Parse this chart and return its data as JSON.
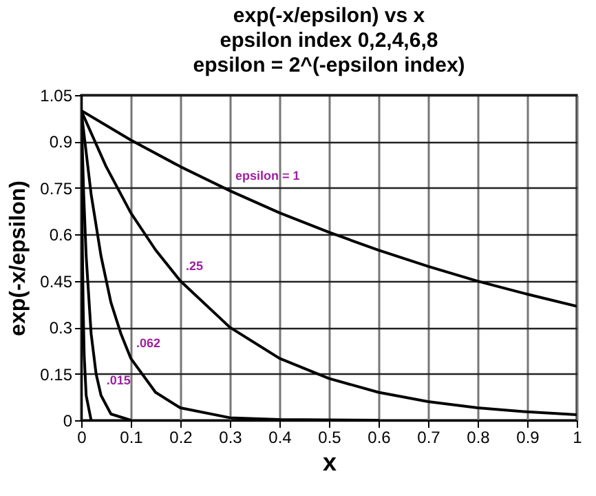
{
  "chart_data": {
    "type": "line",
    "title": "exp(-x/epsilon) vs x\nepsilon index  0,2,4,6,8\nepsilon = 2^(-epsilon index)",
    "xlabel": "x",
    "ylabel": "exp(-x/epsilon)",
    "series": [
      {
        "color": "#000000",
        "x": [
          0,
          0.1,
          0.2,
          0.3,
          0.4,
          0.5,
          0.6,
          0.7,
          0.8,
          0.9,
          1
        ],
        "values": [
          1,
          0.905,
          0.819,
          0.741,
          0.67,
          0.607,
          0.549,
          0.497,
          0.449,
          0.407,
          0.368
        ]
      },
      {
        "color": "#000000",
        "x": [
          0,
          0.05,
          0.1,
          0.15,
          0.2,
          0.3,
          0.4,
          0.5,
          0.6,
          0.7,
          0.8,
          0.9,
          1
        ],
        "values": [
          1,
          0.82,
          0.67,
          0.55,
          0.45,
          0.3,
          0.2,
          0.135,
          0.09,
          0.06,
          0.04,
          0.027,
          0.018
        ]
      },
      {
        "color": "#000000",
        "x": [
          0,
          0.02,
          0.04,
          0.06,
          0.08,
          0.1,
          0.15,
          0.2,
          0.3,
          0.4,
          0.6
        ],
        "values": [
          1,
          0.73,
          0.53,
          0.38,
          0.28,
          0.2,
          0.09,
          0.04,
          0.008,
          0.002,
          0
        ]
      },
      {
        "color": "#000000",
        "x": [
          0,
          0.005,
          0.01,
          0.02,
          0.03,
          0.04,
          0.06,
          0.1
        ],
        "values": [
          1,
          0.73,
          0.53,
          0.28,
          0.15,
          0.08,
          0.02,
          0
        ]
      },
      {
        "color": "#000000",
        "x": [
          0,
          0.002,
          0.004,
          0.006,
          0.01,
          0.02
        ],
        "values": [
          1,
          0.6,
          0.36,
          0.21,
          0.08,
          0
        ]
      }
    ],
    "xlim": [
      0,
      1
    ],
    "xticks": [
      0,
      0.1,
      0.2,
      0.3,
      0.4,
      0.5,
      0.6,
      0.7,
      0.8,
      0.9,
      1
    ],
    "ylim": [
      0,
      1.05
    ],
    "yticks": [
      0,
      0.15,
      0.3,
      0.45,
      0.6,
      0.75,
      0.9,
      1.05
    ],
    "grid": true,
    "legend": false,
    "marker": "none",
    "line_style": "solid",
    "annotations": [
      {
        "text": "epsilon  = 1",
        "x": 0.3,
        "y": 0.741
      },
      {
        "text": ".25",
        "x": 0.2,
        "y": 0.45
      },
      {
        "text": ".062",
        "x": 0.1,
        "y": 0.2
      },
      {
        "text": ".015",
        "x": 0.04,
        "y": 0.08
      }
    ]
  }
}
